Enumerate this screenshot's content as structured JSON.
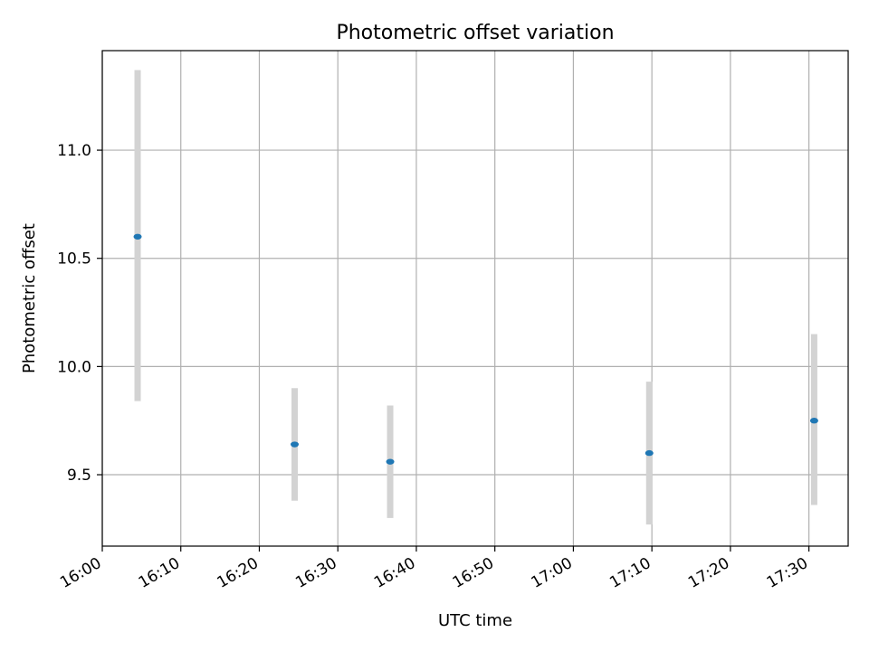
{
  "chart_data": {
    "type": "scatter",
    "title": "Photometric offset variation",
    "xlabel": "UTC time",
    "ylabel": "Photometric offset",
    "x_range": [
      "16:00",
      "17:35"
    ],
    "ylim": [
      9.17,
      11.46
    ],
    "x_ticks": [
      "16:00",
      "16:10",
      "16:20",
      "16:30",
      "16:40",
      "16:50",
      "17:00",
      "17:10",
      "17:20",
      "17:30"
    ],
    "y_ticks": [
      9.5,
      10.0,
      10.5,
      11.0
    ],
    "y_tick_labels": [
      "9.5",
      "10.0",
      "10.5",
      "11.0"
    ],
    "grid": true,
    "points": [
      {
        "x": "16:04:30",
        "y": 10.6,
        "err_low": 9.84,
        "err_high": 11.37
      },
      {
        "x": "16:24:30",
        "y": 9.64,
        "err_low": 9.38,
        "err_high": 9.9
      },
      {
        "x": "16:36:40",
        "y": 9.56,
        "err_low": 9.3,
        "err_high": 9.82
      },
      {
        "x": "17:09:40",
        "y": 9.6,
        "err_low": 9.27,
        "err_high": 9.93
      },
      {
        "x": "17:30:40",
        "y": 9.75,
        "err_low": 9.36,
        "err_high": 10.15
      }
    ],
    "colors": {
      "point": "#1f77b4",
      "errorbar": "#d3d3d3",
      "grid": "#b0b0b0"
    }
  }
}
